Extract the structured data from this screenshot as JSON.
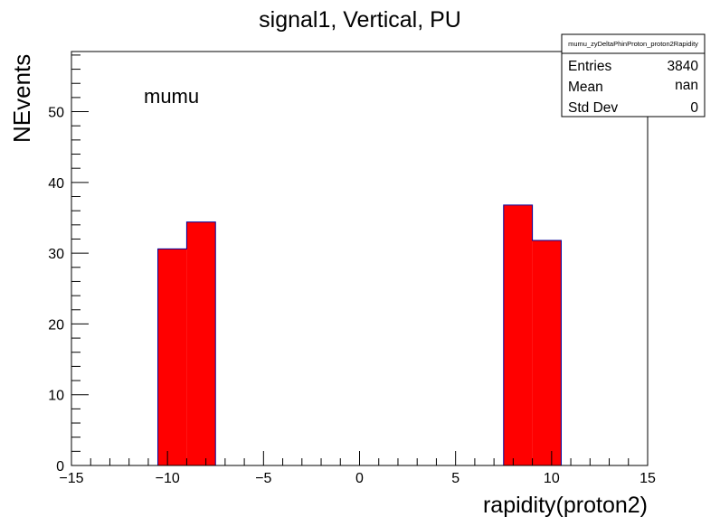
{
  "chart_data": {
    "type": "bar",
    "title": "signal1, Vertical, PU",
    "xlabel": "rapidity(proton2)",
    "ylabel": "NEvents",
    "annotation": "mumu",
    "xlim": [
      -15,
      15
    ],
    "ylim": [
      0,
      58.5
    ],
    "x_ticks": [
      -15,
      -10,
      -5,
      0,
      5,
      10,
      15
    ],
    "x_tick_labels": [
      "−15",
      "−10",
      "−5",
      "0",
      "5",
      "10",
      "15"
    ],
    "y_ticks": [
      0,
      10,
      20,
      30,
      40,
      50
    ],
    "y_tick_labels": [
      "0",
      "10",
      "20",
      "30",
      "40",
      "50"
    ],
    "bin_width": 1.5,
    "bins": [
      {
        "low": -10.5,
        "high": -9.0,
        "value": 30.6
      },
      {
        "low": -9.0,
        "high": -7.5,
        "value": 34.4
      },
      {
        "low": 7.5,
        "high": 9.0,
        "value": 36.8
      },
      {
        "low": 9.0,
        "high": 10.5,
        "value": 31.8
      }
    ],
    "fill_color": "#ff0000",
    "line_color": "#000099",
    "stats_box": {
      "name": "mumu_zyDeltaPhinProton_proton2Rapidity",
      "rows": [
        {
          "label": "Entries",
          "value": "3840"
        },
        {
          "label": "Mean",
          "value": "nan"
        },
        {
          "label": "Std Dev",
          "value": "0"
        }
      ]
    },
    "grid": false
  }
}
